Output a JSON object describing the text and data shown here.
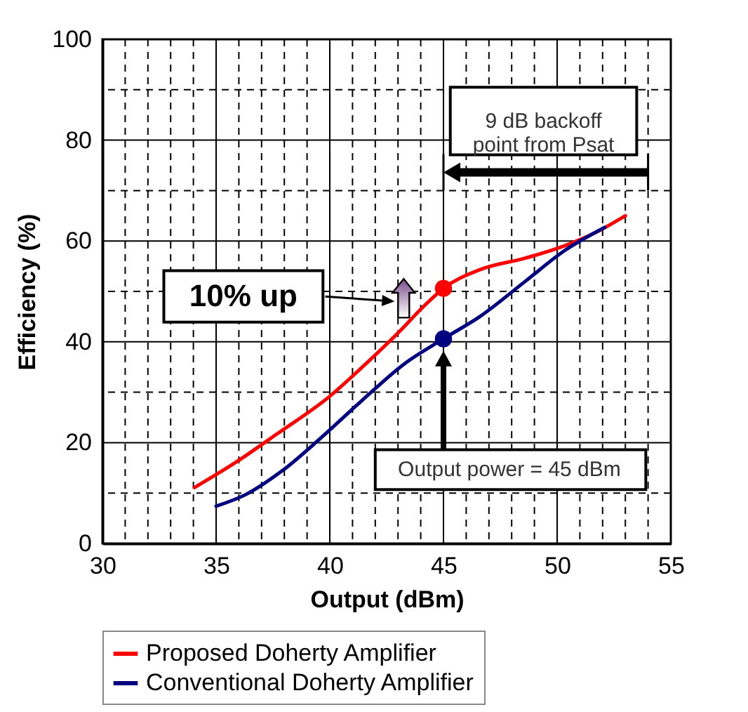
{
  "chart_data": {
    "type": "line",
    "xlabel": "Output (dBm)",
    "ylabel": "Efficiency (%)",
    "xlim": [
      30,
      55
    ],
    "ylim": [
      0,
      100
    ],
    "xticks": [
      30,
      {
        "value": 31,
        "label": null
      },
      {
        "value": 32,
        "label": null
      },
      {
        "value": 33,
        "label": null
      },
      {
        "value": 34,
        "label": null
      },
      35,
      {
        "value": 36,
        "label": null
      },
      {
        "value": 37,
        "label": null
      },
      {
        "value": 38,
        "label": null
      },
      {
        "value": 39,
        "label": null
      },
      40,
      {
        "value": 41,
        "label": null
      },
      {
        "value": 42,
        "label": null
      },
      {
        "value": 43,
        "label": null
      },
      {
        "value": 44,
        "label": null
      },
      45,
      {
        "value": 46,
        "label": null
      },
      {
        "value": 47,
        "label": null
      },
      {
        "value": 48,
        "label": null
      },
      {
        "value": 49,
        "label": null
      },
      50,
      {
        "value": 51,
        "label": null
      },
      {
        "value": 52,
        "label": null
      },
      {
        "value": 53,
        "label": null
      },
      {
        "value": 54,
        "label": null
      },
      55
    ],
    "yticks": [
      0,
      {
        "value": 10,
        "label": null
      },
      20,
      {
        "value": 30,
        "label": null
      },
      40,
      {
        "value": 50,
        "label": null
      },
      60,
      {
        "value": 70,
        "label": null
      },
      80,
      {
        "value": 90,
        "label": null
      },
      100
    ],
    "grid": true,
    "legend": "bottom",
    "series": [
      {
        "name": "Proposed Doherty Amplifier",
        "color": "#ff0000",
        "x": [
          34.05,
          35.9,
          37.7,
          40.0,
          41.6,
          43.1,
          44.1,
          45.0,
          46.6,
          48.6,
          50.3,
          51.7,
          53.0
        ],
        "values": [
          11.1,
          16.2,
          21.8,
          29.2,
          35.7,
          42.2,
          46.9,
          50.6,
          54.3,
          56.6,
          59.0,
          61.7,
          65.0
        ]
      },
      {
        "name": "Conventional Doherty Amplifier",
        "color": "#000080",
        "x": [
          35.0,
          36.3,
          37.9,
          39.6,
          41.4,
          43.3,
          45.0,
          46.6,
          48.6,
          50.3,
          52.1
        ],
        "values": [
          7.4,
          9.7,
          14.4,
          20.9,
          28.3,
          35.7,
          40.6,
          45.0,
          52.0,
          58.0,
          62.7
        ]
      },
      {
        "type": "scatter",
        "color": "#ff0000",
        "x": [
          45
        ],
        "values": [
          50.6
        ]
      },
      {
        "type": "scatter",
        "color": "#000080",
        "x": [
          45
        ],
        "values": [
          40.6
        ]
      }
    ],
    "annotations": [
      "9 dB backoff point from Psat",
      "10% up",
      "Output power = 45 dBm"
    ]
  }
}
